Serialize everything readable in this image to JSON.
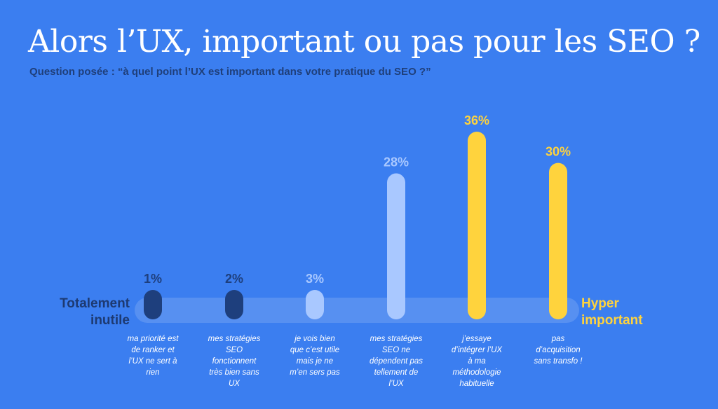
{
  "title": "Alors l’UX, important ou pas pour les SEO ?",
  "subtitle": "Question posée : “à quel point l’UX est important dans votre pratique du SEO ?”",
  "scale": {
    "left_label": [
      "Totalement",
      "inutile"
    ],
    "right_label": [
      "Hyper",
      "important"
    ]
  },
  "colors": {
    "background": "#3b7ef0",
    "low": "#1e3f7d",
    "mid": "#a9c8ff",
    "high": "#ffd33d",
    "track": "#6f9ef2"
  },
  "chart_data": {
    "type": "bar",
    "orientation": "vertical",
    "unit": "%",
    "categories": [
      [
        "ma priorité est",
        "de ranker et",
        "l’UX ne sert à",
        "rien"
      ],
      [
        "mes stratégies",
        "SEO",
        "fonctionnent",
        "très bien sans",
        "UX"
      ],
      [
        "je vois bien",
        "que c’est utile",
        "mais je ne",
        "m’en sers pas"
      ],
      [
        "mes stratégies",
        "SEO ne",
        "dépendent pas",
        "tellement de",
        "l’UX"
      ],
      [
        "j’essaye",
        "d’intégrer l’UX",
        "à ma",
        "méthodologie",
        "habituelle"
      ],
      [
        "pas",
        "d’acquisition",
        "sans transfo !"
      ]
    ],
    "values": [
      1,
      2,
      3,
      28,
      36,
      30
    ],
    "value_labels": [
      "1%",
      "2%",
      "3%",
      "28%",
      "36%",
      "30%"
    ],
    "bar_colors": [
      "#1e3f7d",
      "#1e3f7d",
      "#a9c8ff",
      "#a9c8ff",
      "#ffd33d",
      "#ffd33d"
    ],
    "label_colors": [
      "#1e3f7d",
      "#1e3f7d",
      "#a9c8ff",
      "#a9c8ff",
      "#ffd33d",
      "#ffd33d"
    ],
    "ylim": [
      0,
      36
    ]
  }
}
